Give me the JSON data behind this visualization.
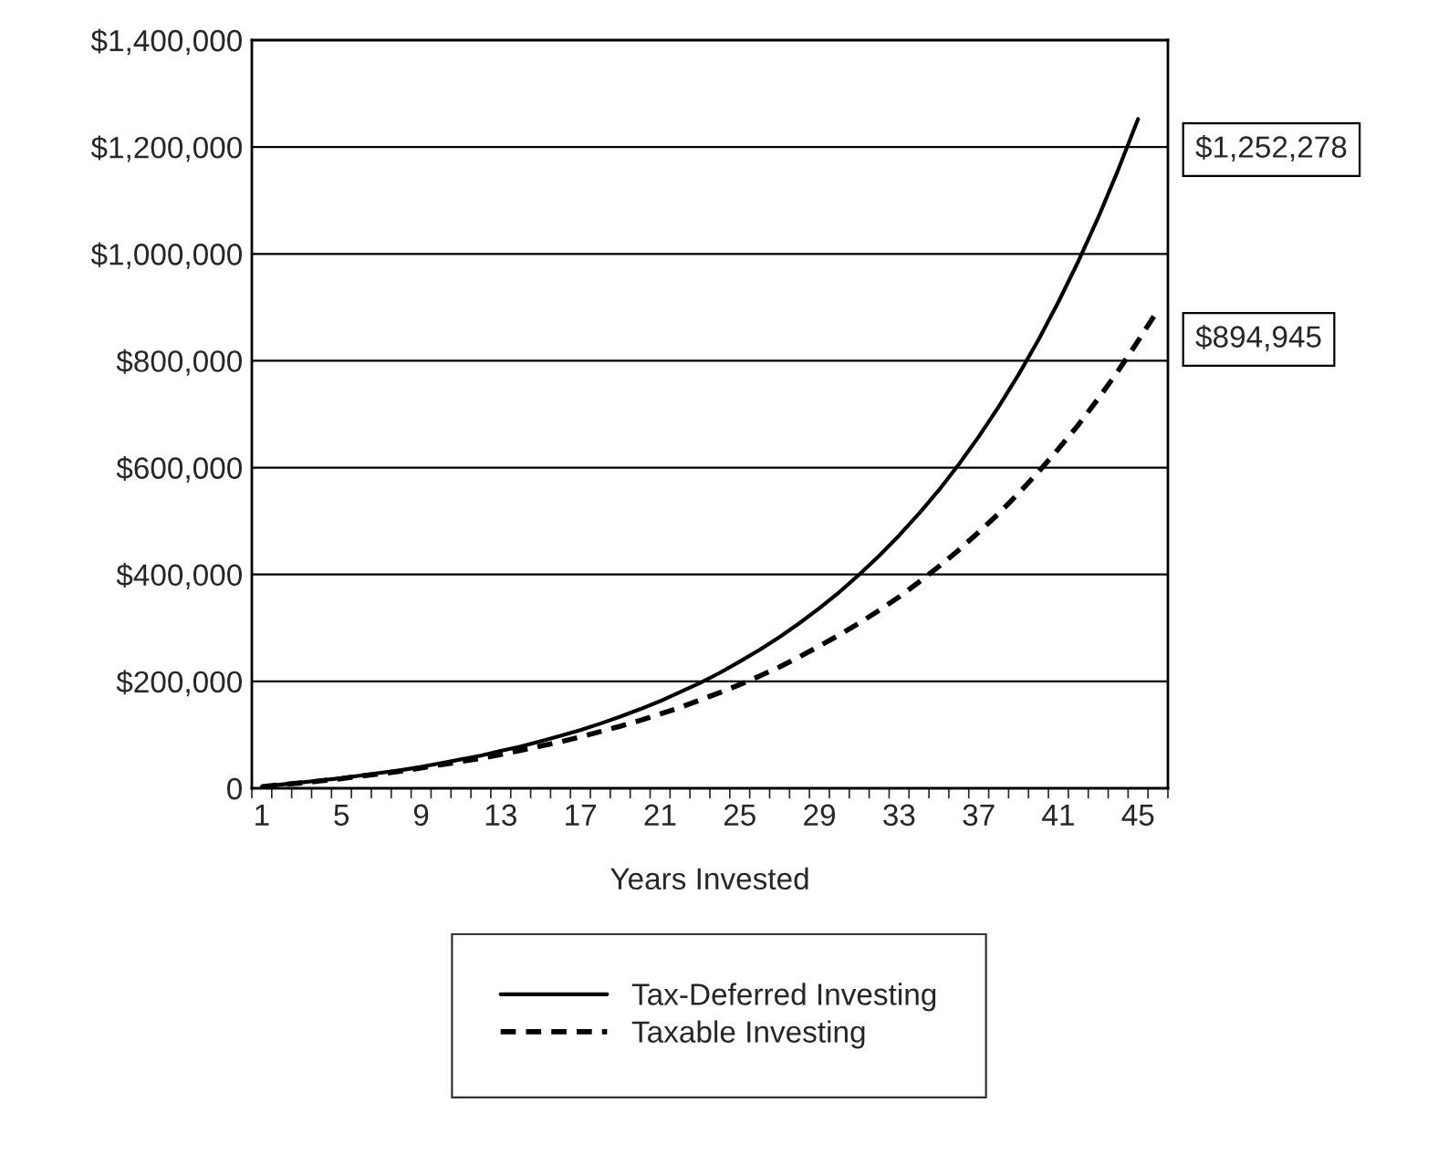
{
  "chart_data": {
    "type": "line",
    "categories": [
      "1",
      null,
      null,
      null,
      "5",
      null,
      null,
      null,
      "9",
      null,
      null,
      null,
      "13",
      null,
      null,
      null,
      "17",
      null,
      null,
      null,
      "21",
      null,
      null,
      null,
      "25",
      null,
      null,
      null,
      "29",
      null,
      null,
      null,
      "33",
      null,
      null,
      null,
      "37",
      null,
      null,
      null,
      "41",
      null,
      null,
      null,
      "45",
      null
    ],
    "series": [
      {
        "name": "Tax-Deferred Investing",
        "color": "#000000",
        "line_style": "solid",
        "values": [
          3000,
          7000,
          11000,
          15000,
          19000,
          24000,
          29000,
          34000,
          40000,
          47000,
          54000,
          61000,
          70000,
          78000,
          88000,
          98000,
          109000,
          121000,
          134000,
          148000,
          163000,
          180000,
          197000,
          216000,
          237000,
          259000,
          283000,
          309000,
          337000,
          367000,
          400000,
          435000,
          473000,
          514000,
          558000,
          606000,
          658000,
          714000,
          774000,
          839000,
          910000,
          986000,
          1068000,
          1157000,
          1252278,
          null
        ]
      },
      {
        "name": "Taxable Investing",
        "color": "#000000",
        "line_style": "dashed",
        "values": [
          3000,
          7000,
          10000,
          14000,
          18000,
          23000,
          27000,
          32000,
          38000,
          44000,
          50000,
          56000,
          63000,
          71000,
          79000,
          87000,
          96000,
          106000,
          116000,
          127000,
          139000,
          151000,
          165000,
          179000,
          194000,
          210000,
          227000,
          246000,
          266000,
          287000,
          309000,
          333000,
          358000,
          386000,
          415000,
          446000,
          479000,
          514000,
          552000,
          592000,
          635000,
          680000,
          729000,
          781000,
          837000,
          894945
        ]
      }
    ],
    "xlabel": "Years Invested",
    "ylim": [
      0,
      1400000
    ],
    "yticks": [
      {
        "value": 0,
        "label": "0"
      },
      {
        "value": 200000,
        "label": "$200,000"
      },
      {
        "value": 400000,
        "label": "$400,000"
      },
      {
        "value": 600000,
        "label": "$600,000"
      },
      {
        "value": 800000,
        "label": "$800,000"
      },
      {
        "value": 1000000,
        "label": "$1,000,000"
      },
      {
        "value": 1200000,
        "label": "$1,200,000"
      },
      {
        "value": 1400000,
        "label": "$1,400,000"
      }
    ],
    "grid": "y",
    "legend": "bottom",
    "annotations": [
      "$1,252,278",
      "$894,945"
    ]
  }
}
